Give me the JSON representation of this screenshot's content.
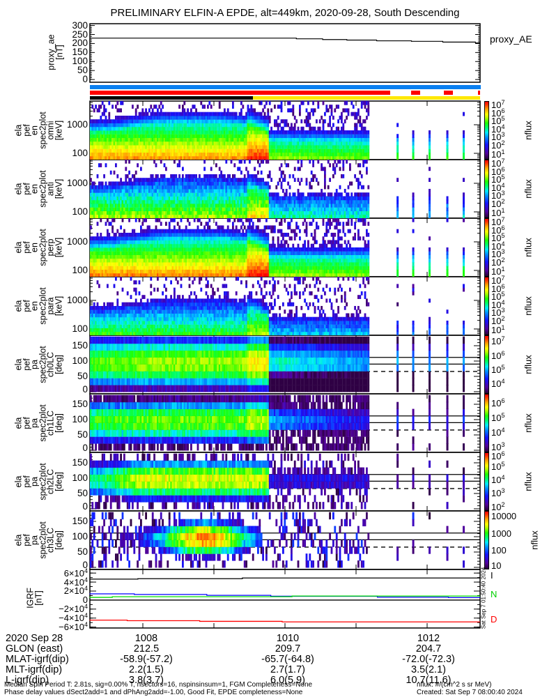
{
  "title": "PRELIMINARY ELFIN-A EPDE, alt=449km, 2020-09-28, South Descending",
  "proxy_ae": {
    "ylabel": [
      "proxy_ae",
      "[nT]"
    ],
    "ticks": [
      "300",
      "250",
      "200",
      "150",
      "100",
      "50",
      "0"
    ],
    "legend": "proxy_AE"
  },
  "panels": [
    {
      "ylabel": [
        "ela",
        "pef",
        "en",
        "spec2plot",
        "omni",
        "[keV]"
      ],
      "ticks": [
        "1000",
        "100"
      ],
      "cbar_label": "nflux"
    },
    {
      "ylabel": [
        "ela",
        "pef",
        "en",
        "spec2plot",
        "anti",
        "[keV]"
      ],
      "ticks": [
        "1000",
        "100"
      ],
      "cbar_label": "nflux"
    },
    {
      "ylabel": [
        "ela",
        "pef",
        "en",
        "spec2plot",
        "perp",
        "[keV]"
      ],
      "ticks": [
        "1000",
        "100"
      ],
      "cbar_label": "nflux"
    },
    {
      "ylabel": [
        "ela",
        "pef",
        "en",
        "spec2plot",
        "para",
        "[keV]"
      ],
      "ticks": [
        "1000",
        "100"
      ],
      "cbar_label": "nflux"
    },
    {
      "ylabel": [
        "ela",
        "pef",
        "pa",
        "spec2plot",
        "ch0LC",
        "[deg]"
      ],
      "ticks": [
        "150",
        "100",
        "50",
        "0"
      ],
      "cbar_label": "nflux"
    },
    {
      "ylabel": [
        "ela",
        "pef",
        "pa",
        "spec2plot",
        "ch1LC",
        "[deg]"
      ],
      "ticks": [
        "150",
        "100",
        "50",
        "0"
      ],
      "cbar_label": "nflux"
    },
    {
      "ylabel": [
        "ela",
        "pef",
        "pa",
        "spec2plot",
        "ch2LC",
        "[deg]"
      ],
      "ticks": [
        "150",
        "100",
        "50",
        "0"
      ],
      "cbar_label": "nflux"
    },
    {
      "ylabel": [
        "ela",
        "pef",
        "pa",
        "spec2plot",
        "ch3LC",
        "[deg]"
      ],
      "ticks": [
        "150",
        "100",
        "50",
        "0"
      ],
      "cbar_label": "nflux"
    }
  ],
  "igrf": {
    "ylabel": [
      "IGRF",
      "[nT]"
    ],
    "ticks": [
      {
        "m": "6×10",
        "e": "4"
      },
      {
        "m": "4×10",
        "e": "4"
      },
      {
        "m": "2×10",
        "e": "4"
      },
      {
        "m": "0",
        "e": ""
      },
      {
        "m": "−2×10",
        "e": "4"
      },
      {
        "m": "−4×10",
        "e": "4"
      },
      {
        "m": "−6×10",
        "e": "4"
      }
    ],
    "legend": [
      "I",
      "N",
      "D"
    ],
    "stamp": "Sat Sep  7 01:50:40 2024"
  },
  "orbit_table": {
    "rows": [
      {
        "label": "2020 Sep 28",
        "values": [
          "1008",
          "1010",
          "1012"
        ]
      },
      {
        "label": "GLON (east)",
        "values": [
          "212.5",
          "209.7",
          "204.7"
        ]
      },
      {
        "label": "MLAT-igrf(dip)",
        "values": [
          "-58.9(-57.2)",
          "-65.7(-64.8)",
          "-72.0(-72.3)"
        ]
      },
      {
        "label": "MLT-igrf(dip)",
        "values": [
          "2.2(1.5)",
          "2.7(1.7)",
          "3.5(2.1)"
        ]
      },
      {
        "label": "L-igrf(dip)",
        "values": [
          "3.8(3.7)",
          "6.0(5.9)",
          "10.7(11.6)"
        ]
      }
    ]
  },
  "footer": {
    "line1": "Median Spin Period T: 2.81s, sig=0.00% T, nsectors=16, nspinsinsum=1, FGM Completeness=None",
    "line2": "Phase delay values dSect2add=1 and dPhAng2add=-1.00, Good Fit, EPDE completeness=None",
    "units": "nflux: #/(cm^2 s sr MeV)",
    "created": "Created: Sat Sep  7 08:00:40 2024"
  },
  "chart_data": {
    "type": "heatmap",
    "time_unit": "minutes after 10:00 UT",
    "xlim": [
      7.25,
      12.75
    ],
    "xticks": [
      8,
      9,
      10,
      11,
      12
    ],
    "data_end": 11.18,
    "sparse_spins": [
      11.57,
      11.79,
      12.02,
      12.27,
      12.5
    ],
    "colormap": [
      [
        0,
        "#2a0038"
      ],
      [
        0.1,
        "#52009c"
      ],
      [
        0.25,
        "#1414ff"
      ],
      [
        0.38,
        "#0090ff"
      ],
      [
        0.46,
        "#00eaff"
      ],
      [
        0.55,
        "#00ff66"
      ],
      [
        0.63,
        "#22ff00"
      ],
      [
        0.72,
        "#b8ff00"
      ],
      [
        0.78,
        "#ffff00"
      ],
      [
        0.87,
        "#ffa000"
      ],
      [
        0.95,
        "#ff3000"
      ],
      [
        1,
        "#ff0000"
      ]
    ],
    "proxy_ae": {
      "ylim": [
        -15,
        310
      ],
      "steps": [
        [
          7.25,
          230
        ],
        [
          10.16,
          226
        ],
        [
          10.53,
          222
        ],
        [
          10.87,
          219
        ],
        [
          11.29,
          215
        ],
        [
          11.78,
          212
        ],
        [
          12.22,
          208
        ],
        [
          12.68,
          203
        ]
      ]
    },
    "status_bars": {
      "blue": {
        "color": "#0a7ff0",
        "segments": [
          [
            7.25,
            12.75
          ]
        ]
      },
      "red": {
        "color": "#ff0000",
        "segments": [
          [
            7.25,
            11.48
          ],
          [
            11.77,
            11.9
          ],
          [
            12.24,
            12.36
          ],
          [
            12.72,
            12.75
          ]
        ]
      },
      "science": {
        "segments": [
          {
            "from": 7.25,
            "to": 9.55,
            "color": "#000000"
          },
          {
            "from": 9.55,
            "to": 12.75,
            "color": "#ffe800"
          }
        ]
      }
    },
    "energy_panels": {
      "ylim_log_keV": [
        1.78,
        3.83
      ],
      "bins": 16,
      "models": [
        {
          "name": "omni",
          "offset": 0.0,
          "noise": 0.25,
          "cbar_log": [
            0.37,
            7.0
          ],
          "cbar_ticks": [
            7,
            6,
            5,
            4,
            3,
            2,
            1
          ]
        },
        {
          "name": "anti",
          "offset": -1.1,
          "noise": 0.45,
          "cbar_log": [
            0.37,
            7.0
          ],
          "cbar_ticks": [
            7,
            6,
            5,
            4,
            3,
            2,
            1
          ]
        },
        {
          "name": "perp",
          "offset": 0.1,
          "noise": 0.25,
          "cbar_log": [
            0.37,
            7.0
          ],
          "cbar_ticks": [
            7,
            6,
            5,
            4,
            3,
            2,
            1
          ]
        },
        {
          "name": "para",
          "offset": -1.7,
          "noise": 0.4,
          "cbar_log": [
            0.37,
            7.0
          ],
          "cbar_ticks": [
            7,
            6,
            5,
            4,
            3,
            2,
            1
          ]
        }
      ]
    },
    "pa_panels": {
      "ylim_deg": [
        0,
        180
      ],
      "bins": 8,
      "lines_deg": {
        "solid": [
          90,
          112
        ],
        "dashed": [
          66
        ]
      },
      "models": [
        {
          "name": "ch0LC",
          "cbar_log": [
            3.3,
            7.44
          ],
          "cbar_ticks": [
            7,
            6,
            5,
            4
          ],
          "plain": false
        },
        {
          "name": "ch1LC",
          "cbar_log": [
            2.62,
            6.62
          ],
          "cbar_ticks": [
            6,
            5,
            4,
            3
          ],
          "plain": false
        },
        {
          "name": "ch2LC",
          "cbar_log": [
            1.7,
            6.05
          ],
          "cbar_ticks": [
            6,
            5,
            4,
            3,
            2
          ],
          "plain": false
        },
        {
          "name": "ch3LC",
          "cbar_log": [
            0.9,
            4.3
          ],
          "cbar_ticks": [
            4,
            3,
            2,
            1
          ],
          "plain": true
        }
      ]
    },
    "igrf": {
      "ylim": [
        -62000,
        68000
      ],
      "series": [
        {
          "name": "I",
          "color": "#000000",
          "steps": [
            [
              7.25,
              46500
            ],
            [
              7.93,
              47500
            ],
            [
              9.4,
              49000
            ]
          ]
        },
        {
          "name": "E",
          "color": "#0000ff",
          "steps": [
            [
              7.25,
              13800
            ],
            [
              7.88,
              12500
            ],
            [
              8.9,
              10500
            ],
            [
              9.8,
              8500
            ],
            [
              11.3,
              6500
            ],
            [
              12.3,
              5500
            ]
          ]
        },
        {
          "name": "N",
          "color": "#00e000",
          "steps": [
            [
              7.25,
              6000
            ],
            [
              7.57,
              7500
            ],
            [
              10.1,
              9000
            ]
          ]
        },
        {
          "name": "D",
          "color": "#ff0000",
          "steps": [
            [
              7.25,
              -44600
            ],
            [
              7.78,
              -45800
            ],
            [
              8.8,
              -47200
            ],
            [
              9.96,
              -48500
            ]
          ]
        }
      ]
    }
  }
}
